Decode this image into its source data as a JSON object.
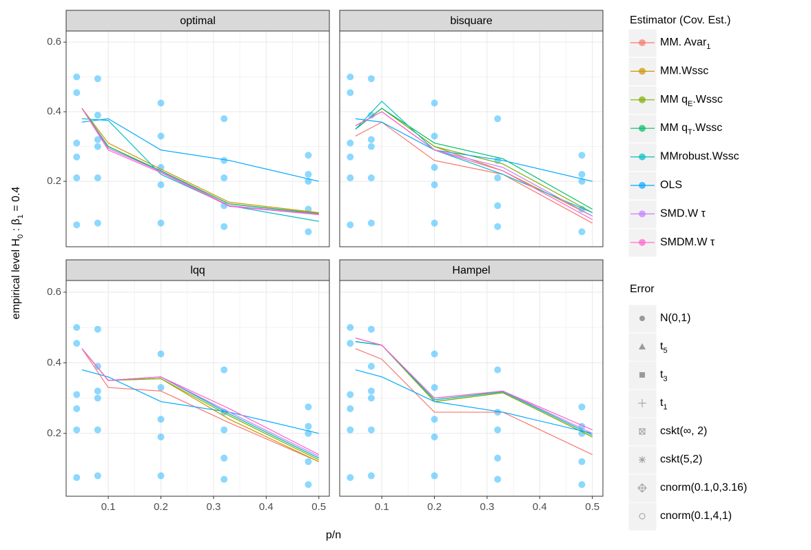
{
  "chart_data": [
    {
      "type": "line",
      "title": "optimal",
      "x": [
        0.05,
        0.1,
        0.2,
        0.33,
        0.5
      ],
      "xlim": [
        0.02,
        0.52
      ],
      "ylim": [
        0.012,
        0.632
      ],
      "xticks": [
        0.1,
        0.2,
        0.3,
        0.4,
        0.5
      ],
      "yticks": [
        0.2,
        0.4,
        0.6
      ],
      "series": [
        {
          "name": "MM. Avar_1",
          "color": "#F8766D",
          "values": [
            0.41,
            0.295,
            0.23,
            0.13,
            0.105
          ]
        },
        {
          "name": "MM.Wssc",
          "color": "#CD9600",
          "values": [
            0.41,
            0.31,
            0.235,
            0.14,
            0.11
          ]
        },
        {
          "name": "MM q_E.Wssc",
          "color": "#7CAE00",
          "values": [
            0.41,
            0.3,
            0.23,
            0.135,
            0.108
          ]
        },
        {
          "name": "MM q_T.Wssc",
          "color": "#00BE67",
          "values": [
            0.41,
            0.3,
            0.23,
            0.135,
            0.107
          ]
        },
        {
          "name": "MMrobust.Wssc",
          "color": "#00BFC4",
          "values": [
            0.38,
            0.375,
            0.22,
            0.13,
            0.085
          ]
        },
        {
          "name": "OLS",
          "color": "#00A9FF",
          "values": [
            0.37,
            0.38,
            0.29,
            0.26,
            0.2
          ]
        },
        {
          "name": "SMD.W τ",
          "color": "#C77CFF",
          "values": [
            0.41,
            0.295,
            0.228,
            0.13,
            0.106
          ]
        },
        {
          "name": "SMDM.W τ",
          "color": "#FF61CC",
          "values": [
            0.41,
            0.29,
            0.225,
            0.128,
            0.104
          ]
        }
      ],
      "points": {
        "color": "#00A9FF",
        "x": [
          0.04,
          0.04,
          0.04,
          0.04,
          0.04,
          0.04,
          0.08,
          0.08,
          0.08,
          0.08,
          0.08,
          0.08,
          0.2,
          0.2,
          0.2,
          0.2,
          0.2,
          0.32,
          0.32,
          0.32,
          0.32,
          0.32,
          0.48,
          0.48,
          0.48,
          0.48,
          0.48
        ],
        "y": [
          0.075,
          0.21,
          0.27,
          0.31,
          0.455,
          0.5,
          0.08,
          0.21,
          0.3,
          0.32,
          0.39,
          0.495,
          0.08,
          0.19,
          0.24,
          0.33,
          0.425,
          0.07,
          0.13,
          0.21,
          0.26,
          0.38,
          0.055,
          0.12,
          0.2,
          0.22,
          0.275
        ]
      }
    },
    {
      "type": "line",
      "title": "bisquare",
      "x": [
        0.05,
        0.1,
        0.2,
        0.33,
        0.5
      ],
      "xlim": [
        0.02,
        0.52
      ],
      "ylim": [
        0.012,
        0.632
      ],
      "xticks": [
        0.1,
        0.2,
        0.3,
        0.4,
        0.5
      ],
      "yticks": [
        0.2,
        0.4,
        0.6
      ],
      "series": [
        {
          "name": "MM. Avar_1",
          "color": "#F8766D",
          "values": [
            0.33,
            0.37,
            0.26,
            0.22,
            0.08
          ]
        },
        {
          "name": "MM.Wssc",
          "color": "#CD9600",
          "values": [
            0.35,
            0.41,
            0.3,
            0.23,
            0.1
          ]
        },
        {
          "name": "MM q_E.Wssc",
          "color": "#7CAE00",
          "values": [
            0.35,
            0.41,
            0.3,
            0.25,
            0.11
          ]
        },
        {
          "name": "MM q_T.Wssc",
          "color": "#00BE67",
          "values": [
            0.35,
            0.41,
            0.31,
            0.265,
            0.12
          ]
        },
        {
          "name": "MMrobust.Wssc",
          "color": "#00BFC4",
          "values": [
            0.35,
            0.43,
            0.29,
            0.22,
            0.11
          ]
        },
        {
          "name": "OLS",
          "color": "#00A9FF",
          "values": [
            0.38,
            0.37,
            0.29,
            0.26,
            0.2
          ]
        },
        {
          "name": "SMD.W τ",
          "color": "#C77CFF",
          "values": [
            0.36,
            0.4,
            0.29,
            0.24,
            0.1
          ]
        },
        {
          "name": "SMDM.W τ",
          "color": "#FF61CC",
          "values": [
            0.36,
            0.4,
            0.29,
            0.23,
            0.09
          ]
        }
      ],
      "points": {
        "color": "#00A9FF",
        "x": [
          0.04,
          0.04,
          0.04,
          0.04,
          0.04,
          0.04,
          0.08,
          0.08,
          0.08,
          0.08,
          0.08,
          0.08,
          0.2,
          0.2,
          0.2,
          0.2,
          0.2,
          0.32,
          0.32,
          0.32,
          0.32,
          0.32,
          0.48,
          0.48,
          0.48,
          0.48,
          0.48
        ],
        "y": [
          0.075,
          0.21,
          0.27,
          0.31,
          0.455,
          0.5,
          0.08,
          0.21,
          0.3,
          0.32,
          0.39,
          0.495,
          0.08,
          0.19,
          0.24,
          0.33,
          0.425,
          0.07,
          0.13,
          0.21,
          0.26,
          0.38,
          0.055,
          0.12,
          0.2,
          0.22,
          0.275
        ]
      }
    },
    {
      "type": "line",
      "title": "lqq",
      "x": [
        0.05,
        0.1,
        0.2,
        0.33,
        0.5
      ],
      "xlim": [
        0.02,
        0.52
      ],
      "ylim": [
        0.022,
        0.633
      ],
      "xticks": [
        0.1,
        0.2,
        0.3,
        0.4,
        0.5
      ],
      "yticks": [
        0.2,
        0.4,
        0.6
      ],
      "series": [
        {
          "name": "MM. Avar_1",
          "color": "#F8766D",
          "values": [
            0.44,
            0.33,
            0.32,
            0.23,
            0.12
          ]
        },
        {
          "name": "MM.Wssc",
          "color": "#CD9600",
          "values": [
            0.44,
            0.35,
            0.355,
            0.24,
            0.12
          ]
        },
        {
          "name": "MM q_E.Wssc",
          "color": "#7CAE00",
          "values": [
            0.44,
            0.35,
            0.355,
            0.25,
            0.125
          ]
        },
        {
          "name": "MM q_T.Wssc",
          "color": "#00BE67",
          "values": [
            0.44,
            0.35,
            0.36,
            0.255,
            0.13
          ]
        },
        {
          "name": "MMrobust.Wssc",
          "color": "#00BFC4",
          "values": [
            0.44,
            0.35,
            0.36,
            0.255,
            0.13
          ]
        },
        {
          "name": "OLS",
          "color": "#00A9FF",
          "values": [
            0.38,
            0.36,
            0.29,
            0.26,
            0.2
          ]
        },
        {
          "name": "SMD.W τ",
          "color": "#C77CFF",
          "values": [
            0.44,
            0.35,
            0.36,
            0.26,
            0.135
          ]
        },
        {
          "name": "SMDM.W τ",
          "color": "#FF61CC",
          "values": [
            0.44,
            0.35,
            0.36,
            0.27,
            0.14
          ]
        }
      ],
      "points": {
        "color": "#00A9FF",
        "x": [
          0.04,
          0.04,
          0.04,
          0.04,
          0.04,
          0.04,
          0.08,
          0.08,
          0.08,
          0.08,
          0.08,
          0.08,
          0.2,
          0.2,
          0.2,
          0.2,
          0.2,
          0.32,
          0.32,
          0.32,
          0.32,
          0.32,
          0.48,
          0.48,
          0.48,
          0.48,
          0.48
        ],
        "y": [
          0.075,
          0.21,
          0.27,
          0.31,
          0.455,
          0.5,
          0.08,
          0.21,
          0.3,
          0.32,
          0.39,
          0.495,
          0.08,
          0.19,
          0.24,
          0.33,
          0.425,
          0.07,
          0.13,
          0.21,
          0.26,
          0.38,
          0.055,
          0.12,
          0.2,
          0.22,
          0.275
        ]
      }
    },
    {
      "type": "line",
      "title": "Hampel",
      "x": [
        0.05,
        0.1,
        0.2,
        0.33,
        0.5
      ],
      "xlim": [
        0.02,
        0.52
      ],
      "ylim": [
        0.022,
        0.633
      ],
      "xticks": [
        0.1,
        0.2,
        0.3,
        0.4,
        0.5
      ],
      "yticks": [
        0.2,
        0.4,
        0.6
      ],
      "series": [
        {
          "name": "MM. Avar_1",
          "color": "#F8766D",
          "values": [
            0.44,
            0.41,
            0.26,
            0.26,
            0.14
          ]
        },
        {
          "name": "MM.Wssc",
          "color": "#CD9600",
          "values": [
            0.46,
            0.45,
            0.29,
            0.315,
            0.19
          ]
        },
        {
          "name": "MM q_E.Wssc",
          "color": "#7CAE00",
          "values": [
            0.46,
            0.45,
            0.29,
            0.315,
            0.19
          ]
        },
        {
          "name": "MM q_T.Wssc",
          "color": "#00BE67",
          "values": [
            0.46,
            0.45,
            0.295,
            0.318,
            0.195
          ]
        },
        {
          "name": "MMrobust.Wssc",
          "color": "#00BFC4",
          "values": [
            0.46,
            0.45,
            0.295,
            0.318,
            0.195
          ]
        },
        {
          "name": "OLS",
          "color": "#00A9FF",
          "values": [
            0.38,
            0.36,
            0.29,
            0.26,
            0.2
          ]
        },
        {
          "name": "SMD.W τ",
          "color": "#C77CFF",
          "values": [
            0.47,
            0.45,
            0.3,
            0.32,
            0.2
          ]
        },
        {
          "name": "SMDM.W τ",
          "color": "#FF61CC",
          "values": [
            0.47,
            0.45,
            0.3,
            0.32,
            0.21
          ]
        }
      ],
      "points": {
        "color": "#00A9FF",
        "x": [
          0.04,
          0.04,
          0.04,
          0.04,
          0.04,
          0.04,
          0.08,
          0.08,
          0.08,
          0.08,
          0.08,
          0.08,
          0.2,
          0.2,
          0.2,
          0.2,
          0.2,
          0.32,
          0.32,
          0.32,
          0.32,
          0.32,
          0.48,
          0.48,
          0.48,
          0.48,
          0.48
        ],
        "y": [
          0.075,
          0.21,
          0.27,
          0.31,
          0.455,
          0.5,
          0.08,
          0.21,
          0.3,
          0.32,
          0.39,
          0.495,
          0.08,
          0.19,
          0.24,
          0.33,
          0.425,
          0.07,
          0.13,
          0.21,
          0.26,
          0.38,
          0.055,
          0.12,
          0.2,
          0.22,
          0.275
        ]
      }
    }
  ],
  "x_label": "p/n",
  "y_label": "empirical level  H_0 : β_1 = 0.4",
  "legend_title": "Estimator (Cov. Est.)",
  "error_legend": {
    "title": "Error",
    "items": [
      "N(0,1)",
      "t_5",
      "t_3",
      "t_1",
      "cskt(∞, 2)",
      "cskt(5,2)",
      "cnorm(0.1,0,3.16)",
      "cnorm(0.1,4,1)"
    ]
  }
}
